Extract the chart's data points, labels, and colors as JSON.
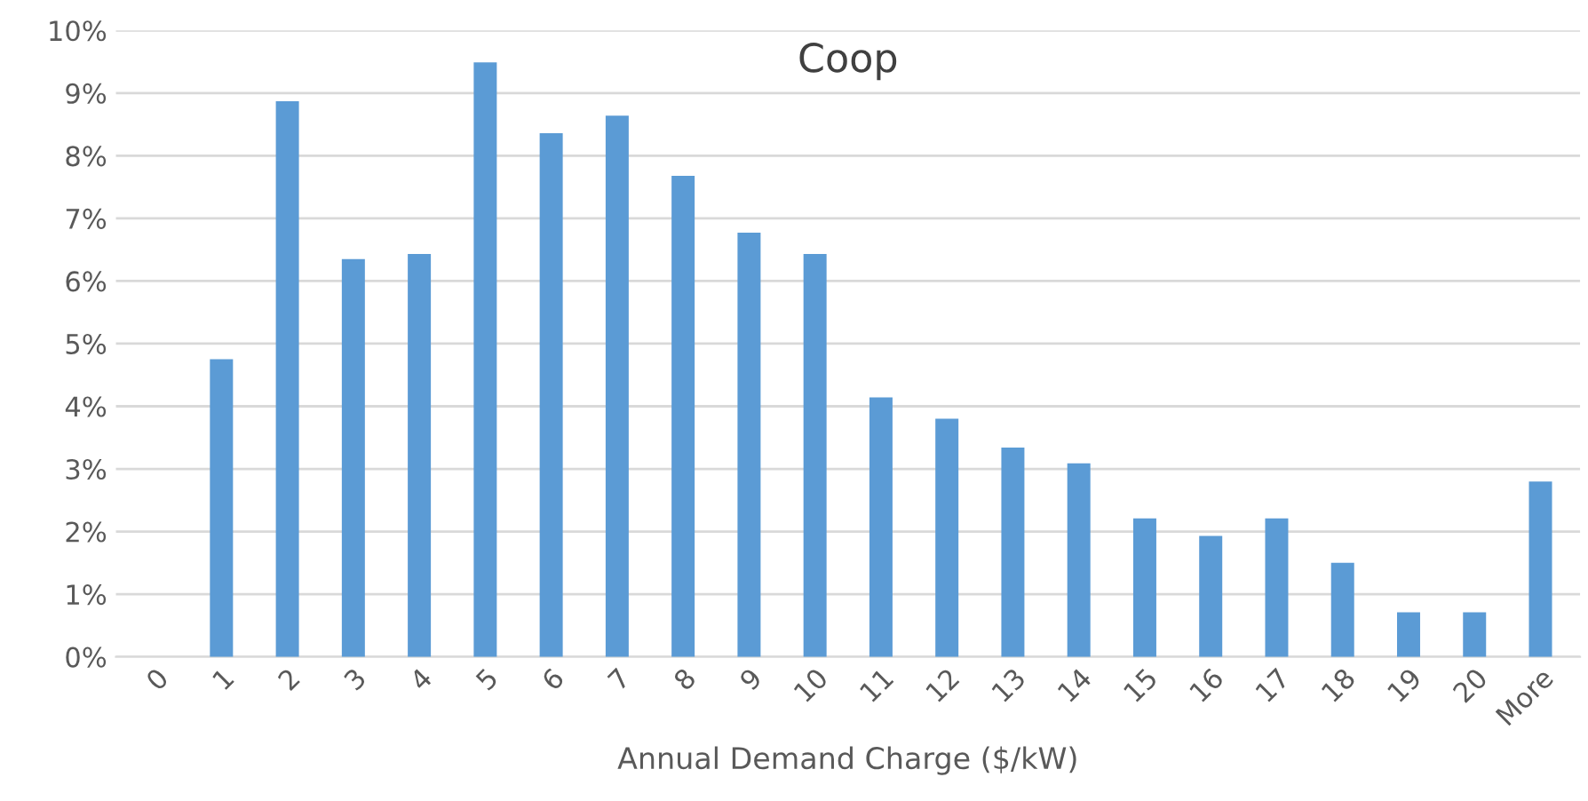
{
  "chart_data": {
    "type": "bar",
    "title": "Coop",
    "xlabel": "Annual Demand Charge ($/kW)",
    "categories": [
      "0",
      "1",
      "2",
      "3",
      "4",
      "5",
      "6",
      "7",
      "8",
      "9",
      "10",
      "11",
      "12",
      "13",
      "14",
      "15",
      "16",
      "17",
      "18",
      "19",
      "20",
      "More"
    ],
    "values": [
      0,
      4.75,
      8.87,
      6.35,
      6.43,
      9.49,
      8.36,
      8.64,
      7.68,
      6.77,
      6.43,
      4.14,
      3.8,
      3.34,
      3.09,
      2.21,
      1.93,
      2.21,
      1.5,
      0.71,
      0.71,
      2.8
    ],
    "color": "#5b9bd5",
    "ylim": [
      0,
      10
    ],
    "yticks": [
      {
        "value": 0,
        "label": "0%"
      },
      {
        "value": 1,
        "label": "1%"
      },
      {
        "value": 2,
        "label": "2%"
      },
      {
        "value": 3,
        "label": "3%"
      },
      {
        "value": 4,
        "label": "4%"
      },
      {
        "value": 5,
        "label": "5%"
      },
      {
        "value": 6,
        "label": "6%"
      },
      {
        "value": 7,
        "label": "7%"
      },
      {
        "value": 8,
        "label": "8%"
      },
      {
        "value": 9,
        "label": "9%"
      },
      {
        "value": 10,
        "label": "10%"
      }
    ],
    "grid": "y"
  }
}
